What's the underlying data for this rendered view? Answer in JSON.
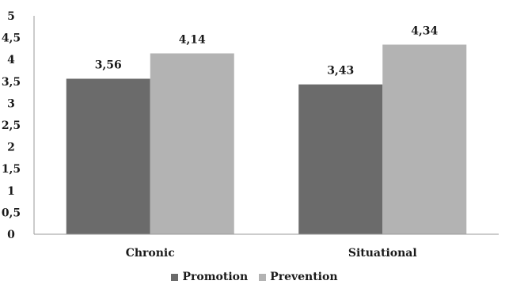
{
  "chart_data": {
    "type": "bar",
    "categories": [
      "Chronic",
      "Situational"
    ],
    "series": [
      {
        "name": "Promotion",
        "values": [
          3.56,
          3.43
        ],
        "labels": [
          "3,56",
          "3,43"
        ],
        "color": "#6b6b6b"
      },
      {
        "name": "Prevention",
        "values": [
          4.14,
          4.34
        ],
        "labels": [
          "4,14",
          "4,34"
        ],
        "color": "#b3b3b3"
      }
    ],
    "ylim": [
      0,
      5
    ],
    "yticks": [
      0,
      0.5,
      1,
      1.5,
      2,
      2.5,
      3,
      3.5,
      4,
      4.5,
      5
    ],
    "ytick_labels": [
      "0",
      "0,5",
      "1",
      "1,5",
      "2",
      "2,5",
      "3",
      "3,5",
      "4",
      "4,5",
      "5"
    ],
    "grid": false,
    "legend_position": "bottom"
  }
}
